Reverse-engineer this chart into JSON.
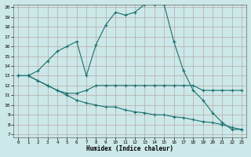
{
  "xlabel": "Humidex (Indice chaleur)",
  "bg_color": "#cce8e8",
  "grid_color": "#b8a8a8",
  "line_color": "#1a6e6e",
  "ylim": [
    7,
    20
  ],
  "xlim": [
    -0.5,
    23.5
  ],
  "yticks": [
    7,
    8,
    9,
    10,
    11,
    12,
    13,
    14,
    15,
    16,
    17,
    18,
    19,
    20
  ],
  "xticks": [
    0,
    1,
    2,
    3,
    4,
    5,
    6,
    7,
    8,
    9,
    10,
    11,
    12,
    13,
    14,
    15,
    16,
    17,
    18,
    19,
    20,
    21,
    22,
    23
  ],
  "line1_x": [
    0,
    1,
    2,
    3,
    4,
    5,
    6,
    7,
    8,
    9,
    10,
    11,
    12,
    13,
    14,
    15,
    16,
    17,
    18,
    19,
    20,
    21,
    22,
    23
  ],
  "line1_y": [
    13,
    13,
    13.5,
    14.5,
    15.5,
    16,
    16.5,
    13,
    16.2,
    18.2,
    19.5,
    19.2,
    19.5,
    20.3,
    20.3,
    20.3,
    16.5,
    13.5,
    11.5,
    10.5,
    9.2,
    8.2,
    7.5,
    7.5
  ],
  "line2_x": [
    0,
    1,
    2,
    3,
    4,
    5,
    6,
    7,
    8,
    9,
    10,
    11,
    12,
    13,
    14,
    15,
    16,
    17,
    18,
    19,
    20,
    21,
    22,
    23
  ],
  "line2_y": [
    13,
    13,
    12.5,
    12,
    11.5,
    11.2,
    11.2,
    11.5,
    12,
    12,
    12,
    12,
    12,
    12,
    12,
    12,
    12,
    12,
    12,
    11.5,
    11.5,
    11.5,
    11.5,
    11.5
  ],
  "line3_x": [
    0,
    1,
    2,
    3,
    4,
    5,
    6,
    7,
    8,
    9,
    10,
    11,
    12,
    13,
    14,
    15,
    16,
    17,
    18,
    19,
    20,
    21,
    22,
    23
  ],
  "line3_y": [
    13,
    13,
    12.5,
    12,
    11.5,
    11,
    10.5,
    10.2,
    10,
    9.8,
    9.8,
    9.5,
    9.3,
    9.2,
    9.0,
    9.0,
    8.8,
    8.7,
    8.5,
    8.3,
    8.2,
    8.0,
    7.7,
    7.5
  ]
}
